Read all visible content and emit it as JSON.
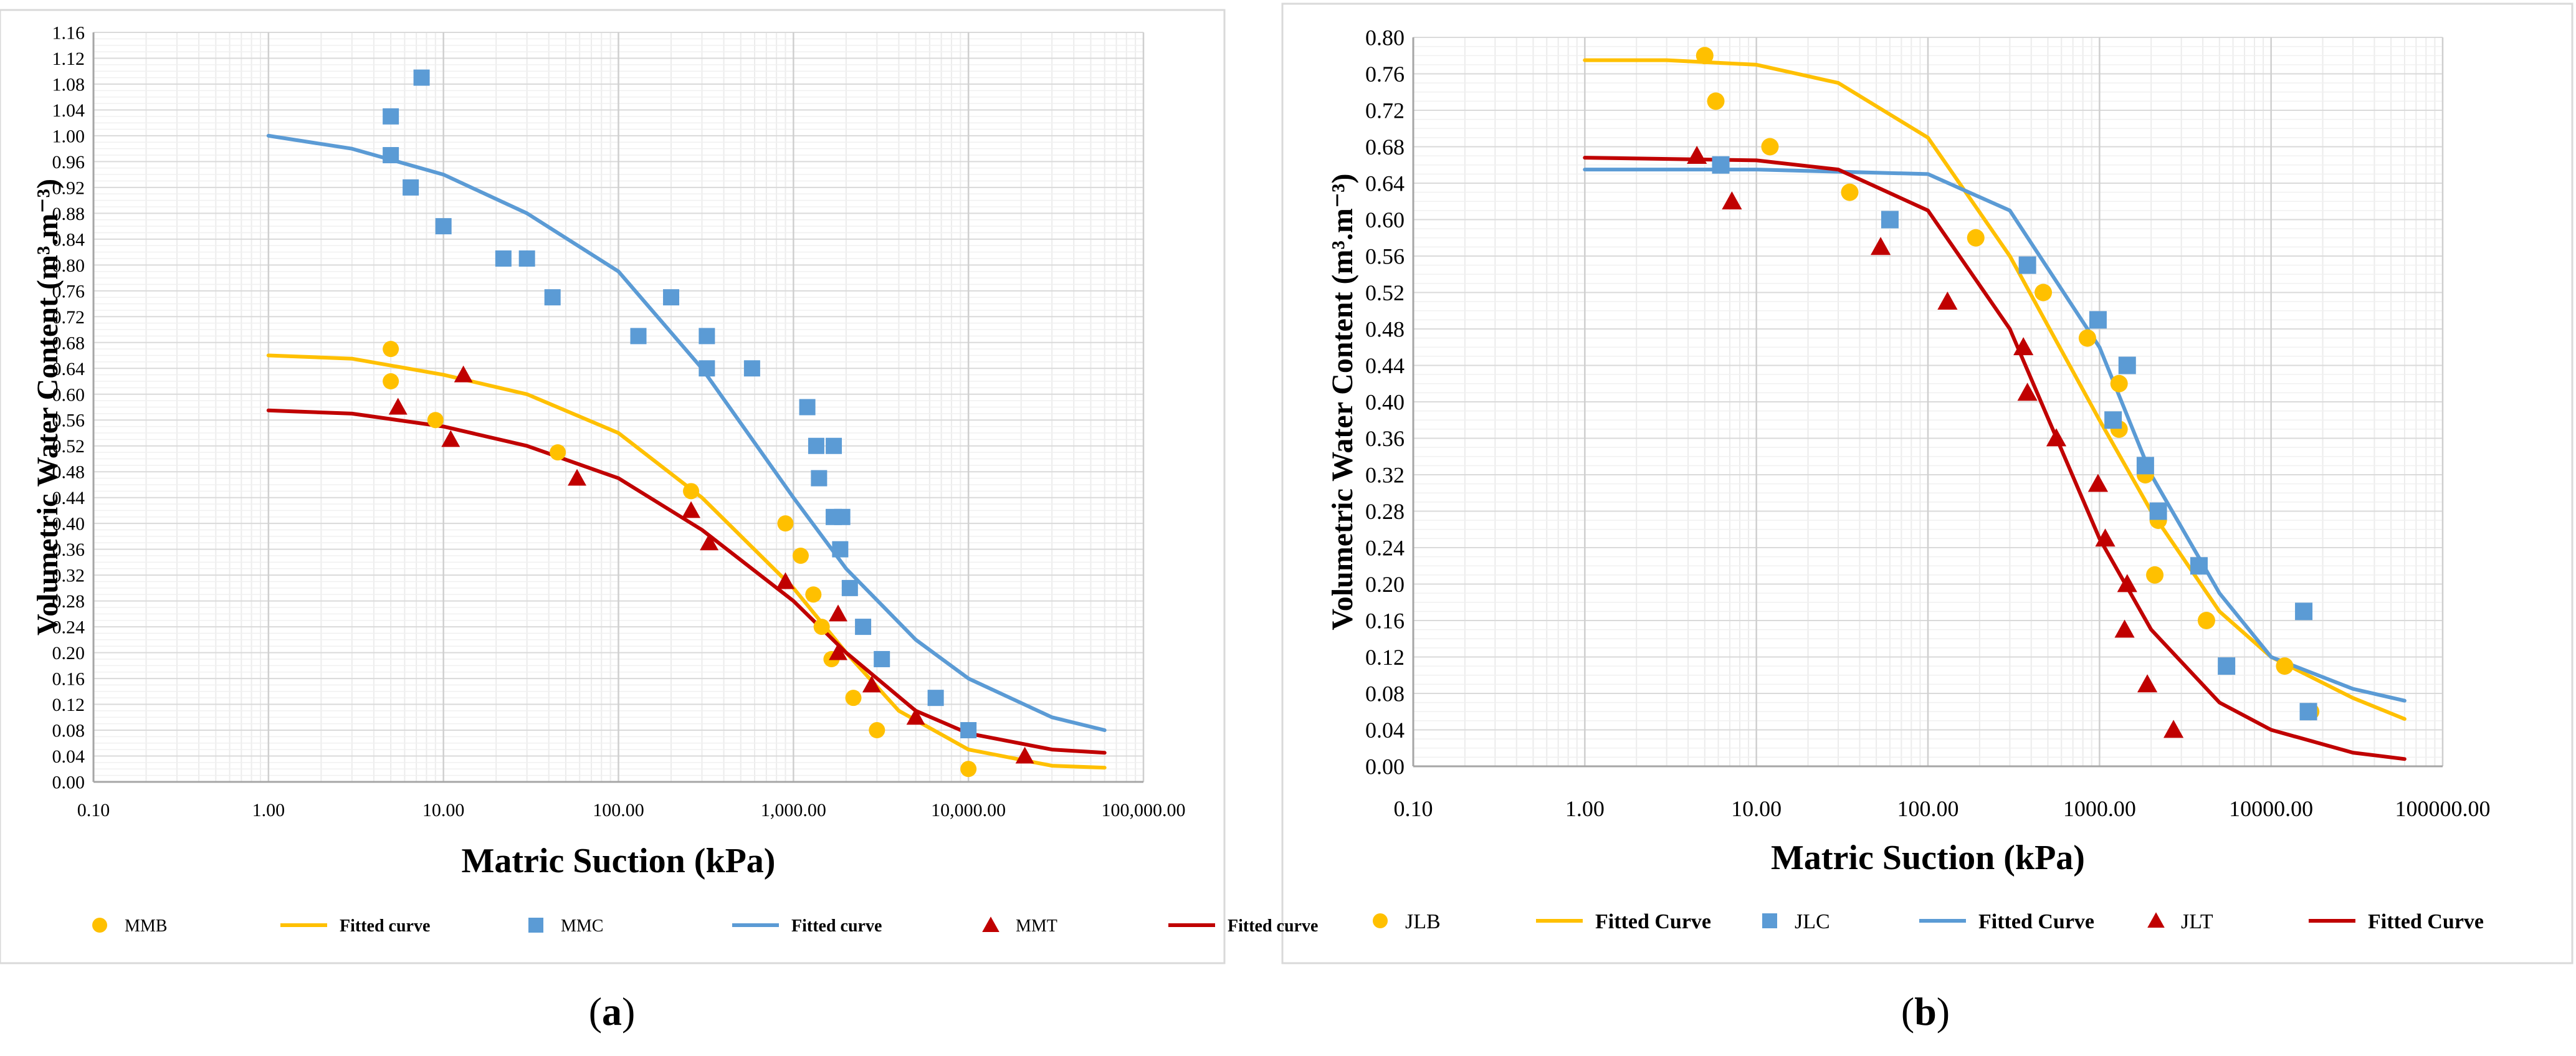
{
  "colors": {
    "yellow": "#FFC000",
    "blue": "#5B9BD5",
    "red": "#C00000",
    "grid": "#E3E3E3",
    "axis": "#BFBFBF",
    "text": "#000000"
  },
  "chart_data": [
    {
      "panel_label": "a",
      "type": "scatter",
      "xscale": "log",
      "xlim": [
        0.1,
        100000
      ],
      "ylim": [
        0,
        1.16
      ],
      "xlabel": "Matric Suction (kPa)",
      "ylabel": "Volumetric Water Content (m³.m⁻³)",
      "x_ticks": [
        0.1,
        1,
        10,
        100,
        1000,
        10000,
        100000
      ],
      "x_tick_labels": [
        "0.10",
        "1.00",
        "10.00",
        "100.00",
        "1,000.00",
        "10,000.00",
        "100,000.00"
      ],
      "y_ticks": [
        0,
        0.04,
        0.08,
        0.12,
        0.16,
        0.2,
        0.24,
        0.28,
        0.32,
        0.36,
        0.4,
        0.44,
        0.48,
        0.52,
        0.56,
        0.6,
        0.64,
        0.68,
        0.72,
        0.76,
        0.8,
        0.84,
        0.88,
        0.92,
        0.96,
        1,
        1.04,
        1.08,
        1.12,
        1.16
      ],
      "y_tick_labels": [
        "0.00",
        "0.04",
        "0.08",
        "0.12",
        "0.16",
        "0.20",
        "0.24",
        "0.28",
        "0.32",
        "0.36",
        "0.40",
        "0.44",
        "0.48",
        "0.52",
        "0.56",
        "0.60",
        "0.64",
        "0.68",
        "0.72",
        "0.76",
        "0.80",
        "0.84",
        "0.88",
        "0.92",
        "0.96",
        "1.00",
        "1.04",
        "1.08",
        "1.12",
        "1.16"
      ],
      "legend_position": "bottom",
      "series": [
        {
          "name": "MMB",
          "kind": "points",
          "marker": "circle",
          "color": "#FFC000",
          "points": [
            [
              5,
              0.67
            ],
            [
              5,
              0.62
            ],
            [
              9,
              0.56
            ],
            [
              45,
              0.51
            ],
            [
              260,
              0.45
            ],
            [
              900,
              0.4
            ],
            [
              1100,
              0.35
            ],
            [
              1300,
              0.29
            ],
            [
              1450,
              0.24
            ],
            [
              1650,
              0.19
            ],
            [
              2200,
              0.13
            ],
            [
              3000,
              0.08
            ],
            [
              10000,
              0.02
            ]
          ]
        },
        {
          "name": "Fitted curve",
          "kind": "line",
          "color": "#FFC000",
          "legend_for": "MMB",
          "points": [
            [
              1,
              0.66
            ],
            [
              3,
              0.655
            ],
            [
              10,
              0.63
            ],
            [
              30,
              0.6
            ],
            [
              100,
              0.54
            ],
            [
              300,
              0.44
            ],
            [
              1000,
              0.3
            ],
            [
              2000,
              0.2
            ],
            [
              4000,
              0.11
            ],
            [
              10000,
              0.05
            ],
            [
              30000,
              0.025
            ],
            [
              60000,
              0.022
            ]
          ]
        },
        {
          "name": "MMC",
          "kind": "points",
          "marker": "square",
          "color": "#5B9BD5",
          "points": [
            [
              5,
              1.03
            ],
            [
              5,
              0.97
            ],
            [
              6.5,
              0.92
            ],
            [
              7.5,
              1.09
            ],
            [
              10,
              0.86
            ],
            [
              22,
              0.81
            ],
            [
              30,
              0.81
            ],
            [
              42,
              0.75
            ],
            [
              130,
              0.69
            ],
            [
              200,
              0.75
            ],
            [
              320,
              0.69
            ],
            [
              320,
              0.64
            ],
            [
              580,
              0.64
            ],
            [
              1200,
              0.58
            ],
            [
              1350,
              0.52
            ],
            [
              1400,
              0.47
            ],
            [
              1700,
              0.52
            ],
            [
              1700,
              0.41
            ],
            [
              1900,
              0.41
            ],
            [
              1850,
              0.36
            ],
            [
              2100,
              0.3
            ],
            [
              2500,
              0.24
            ],
            [
              3200,
              0.19
            ],
            [
              6500,
              0.13
            ],
            [
              10000,
              0.08
            ]
          ]
        },
        {
          "name": "Fitted curve",
          "kind": "line",
          "color": "#5B9BD5",
          "legend_for": "MMC",
          "points": [
            [
              1,
              1.0
            ],
            [
              3,
              0.98
            ],
            [
              10,
              0.94
            ],
            [
              30,
              0.88
            ],
            [
              100,
              0.79
            ],
            [
              300,
              0.64
            ],
            [
              1000,
              0.44
            ],
            [
              2000,
              0.33
            ],
            [
              5000,
              0.22
            ],
            [
              10000,
              0.16
            ],
            [
              30000,
              0.1
            ],
            [
              60000,
              0.08
            ]
          ]
        },
        {
          "name": "MMT",
          "kind": "points",
          "marker": "triangle",
          "color": "#C00000",
          "points": [
            [
              5.5,
              0.58
            ],
            [
              11,
              0.53
            ],
            [
              13,
              0.63
            ],
            [
              58,
              0.47
            ],
            [
              260,
              0.42
            ],
            [
              330,
              0.37
            ],
            [
              900,
              0.31
            ],
            [
              1800,
              0.26
            ],
            [
              1800,
              0.2
            ],
            [
              2800,
              0.15
            ],
            [
              5000,
              0.1
            ],
            [
              21000,
              0.04
            ]
          ]
        },
        {
          "name": "Fitted curve",
          "kind": "line",
          "color": "#C00000",
          "legend_for": "MMT",
          "points": [
            [
              1,
              0.575
            ],
            [
              3,
              0.57
            ],
            [
              10,
              0.55
            ],
            [
              30,
              0.52
            ],
            [
              100,
              0.47
            ],
            [
              300,
              0.39
            ],
            [
              1000,
              0.28
            ],
            [
              2000,
              0.2
            ],
            [
              5000,
              0.11
            ],
            [
              10000,
              0.075
            ],
            [
              30000,
              0.05
            ],
            [
              60000,
              0.045
            ]
          ]
        }
      ],
      "legend": [
        {
          "label": "MMB",
          "marker": "circle",
          "color": "#FFC000"
        },
        {
          "label": "Fitted curve",
          "marker": "line",
          "color": "#FFC000"
        },
        {
          "label": "MMC",
          "marker": "square",
          "color": "#5B9BD5"
        },
        {
          "label": "Fitted curve",
          "marker": "line",
          "color": "#5B9BD5"
        },
        {
          "label": "MMT",
          "marker": "triangle",
          "color": "#C00000"
        },
        {
          "label": "Fitted curve",
          "marker": "line",
          "color": "#C00000"
        }
      ]
    },
    {
      "panel_label": "b",
      "type": "scatter",
      "xscale": "log",
      "xlim": [
        0.1,
        100000
      ],
      "ylim": [
        0,
        0.8
      ],
      "xlabel": "Matric Suction (kPa)",
      "ylabel": "Volumetric Water Content (m³.m⁻³)",
      "x_ticks": [
        0.1,
        1,
        10,
        100,
        1000,
        10000,
        100000
      ],
      "x_tick_labels": [
        "0.10",
        "1.00",
        "10.00",
        "100.00",
        "1000.00",
        "10000.00",
        "100000.00"
      ],
      "y_ticks": [
        0,
        0.04,
        0.08,
        0.12,
        0.16,
        0.2,
        0.24,
        0.28,
        0.32,
        0.36,
        0.4,
        0.44,
        0.48,
        0.52,
        0.56,
        0.6,
        0.64,
        0.68,
        0.72,
        0.76,
        0.8
      ],
      "y_tick_labels": [
        "0.00",
        "0.04",
        "0.08",
        "0.12",
        "0.16",
        "0.20",
        "0.24",
        "0.28",
        "0.32",
        "0.36",
        "0.40",
        "0.44",
        "0.48",
        "0.52",
        "0.56",
        "0.60",
        "0.64",
        "0.68",
        "0.72",
        "0.76",
        "0.80"
      ],
      "legend_position": "bottom",
      "series": [
        {
          "name": "JLB",
          "kind": "points",
          "marker": "circle",
          "color": "#FFC000",
          "points": [
            [
              5,
              0.78
            ],
            [
              5.8,
              0.73
            ],
            [
              12,
              0.68
            ],
            [
              35,
              0.63
            ],
            [
              190,
              0.58
            ],
            [
              470,
              0.52
            ],
            [
              850,
              0.47
            ],
            [
              1300,
              0.42
            ],
            [
              1300,
              0.37
            ],
            [
              1850,
              0.32
            ],
            [
              2200,
              0.27
            ],
            [
              2100,
              0.21
            ],
            [
              4200,
              0.16
            ],
            [
              12000,
              0.11
            ],
            [
              17000,
              0.06
            ]
          ]
        },
        {
          "name": "Fitted Curve",
          "kind": "line",
          "color": "#FFC000",
          "legend_for": "JLB",
          "points": [
            [
              1,
              0.775
            ],
            [
              3,
              0.775
            ],
            [
              10,
              0.77
            ],
            [
              30,
              0.75
            ],
            [
              100,
              0.69
            ],
            [
              300,
              0.56
            ],
            [
              1000,
              0.38
            ],
            [
              2000,
              0.28
            ],
            [
              5000,
              0.17
            ],
            [
              10000,
              0.12
            ],
            [
              30000,
              0.075
            ],
            [
              60000,
              0.052
            ]
          ]
        },
        {
          "name": "JLC",
          "kind": "points",
          "marker": "square",
          "color": "#5B9BD5",
          "points": [
            [
              6.2,
              0.66
            ],
            [
              60,
              0.6
            ],
            [
              380,
              0.55
            ],
            [
              980,
              0.49
            ],
            [
              1450,
              0.44
            ],
            [
              1200,
              0.38
            ],
            [
              1850,
              0.33
            ],
            [
              2200,
              0.28
            ],
            [
              3800,
              0.22
            ],
            [
              5500,
              0.11
            ],
            [
              15500,
              0.17
            ],
            [
              16500,
              0.06
            ]
          ]
        },
        {
          "name": "Fitted Curve",
          "kind": "line",
          "color": "#5B9BD5",
          "legend_for": "JLC",
          "points": [
            [
              1,
              0.655
            ],
            [
              10,
              0.655
            ],
            [
              100,
              0.65
            ],
            [
              300,
              0.61
            ],
            [
              1000,
              0.46
            ],
            [
              2000,
              0.32
            ],
            [
              5000,
              0.19
            ],
            [
              10000,
              0.12
            ],
            [
              30000,
              0.085
            ],
            [
              60000,
              0.072
            ]
          ]
        },
        {
          "name": "JLT",
          "kind": "points",
          "marker": "triangle",
          "color": "#C00000",
          "points": [
            [
              4.5,
              0.67
            ],
            [
              7.2,
              0.62
            ],
            [
              53,
              0.57
            ],
            [
              130,
              0.51
            ],
            [
              360,
              0.46
            ],
            [
              380,
              0.41
            ],
            [
              560,
              0.36
            ],
            [
              980,
              0.31
            ],
            [
              1080,
              0.25
            ],
            [
              1450,
              0.2
            ],
            [
              1400,
              0.15
            ],
            [
              1900,
              0.09
            ],
            [
              2700,
              0.04
            ]
          ]
        },
        {
          "name": "Fitted Curve",
          "kind": "line",
          "color": "#C00000",
          "legend_for": "JLT",
          "points": [
            [
              1,
              0.668
            ],
            [
              10,
              0.665
            ],
            [
              30,
              0.655
            ],
            [
              100,
              0.61
            ],
            [
              300,
              0.48
            ],
            [
              1000,
              0.25
            ],
            [
              2000,
              0.15
            ],
            [
              5000,
              0.07
            ],
            [
              10000,
              0.04
            ],
            [
              30000,
              0.015
            ],
            [
              60000,
              0.008
            ]
          ]
        }
      ],
      "legend": [
        {
          "label": "JLB",
          "marker": "circle",
          "color": "#FFC000"
        },
        {
          "label": "Fitted Curve",
          "marker": "line",
          "color": "#FFC000"
        },
        {
          "label": "JLC",
          "marker": "square",
          "color": "#5B9BD5"
        },
        {
          "label": "Fitted Curve",
          "marker": "line",
          "color": "#5B9BD5"
        },
        {
          "label": "JLT",
          "marker": "triangle",
          "color": "#C00000"
        },
        {
          "label": "Fitted Curve",
          "marker": "line",
          "color": "#C00000"
        }
      ]
    }
  ]
}
